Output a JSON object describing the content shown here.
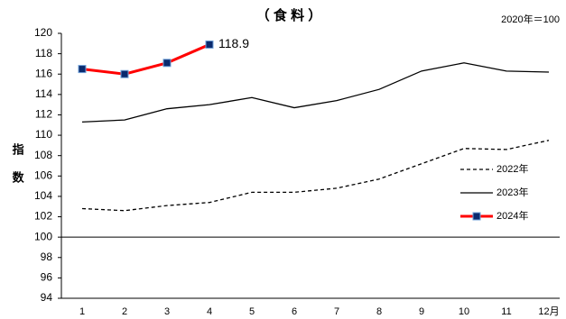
{
  "chart_data": {
    "type": "line",
    "title": "（ 食 料 ）",
    "note": "2020年＝100",
    "ylabel": "指数",
    "categories": [
      "1",
      "2",
      "3",
      "4",
      "5",
      "6",
      "7",
      "8",
      "9",
      "10",
      "11",
      "12月"
    ],
    "series": [
      {
        "name": "2022年",
        "color": "#000000",
        "line_style": "dashed",
        "values": [
          102.8,
          102.6,
          103.1,
          103.4,
          104.4,
          104.4,
          104.8,
          105.7,
          107.2,
          108.7,
          108.6,
          109.5
        ]
      },
      {
        "name": "2023年",
        "color": "#000000",
        "line_style": "solid",
        "values": [
          111.3,
          111.5,
          112.6,
          113.0,
          113.7,
          112.7,
          113.4,
          114.5,
          116.3,
          117.1,
          116.3,
          116.2
        ]
      },
      {
        "name": "2024年",
        "color": "#ff0000",
        "line_style": "solid",
        "marker": "square",
        "marker_color": "#0a2a6e",
        "values": [
          116.5,
          116.0,
          117.1,
          118.9,
          null,
          null,
          null,
          null,
          null,
          null,
          null,
          null
        ]
      }
    ],
    "ylim": [
      94,
      120
    ],
    "yticks": [
      94,
      96,
      98,
      100,
      102,
      104,
      106,
      108,
      110,
      112,
      114,
      116,
      118,
      120
    ],
    "reference_line": 100,
    "legend": "right"
  }
}
